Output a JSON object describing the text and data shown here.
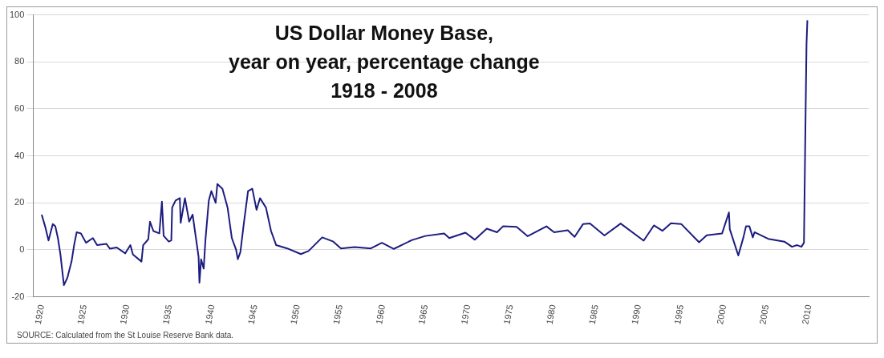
{
  "chart_data": {
    "type": "line",
    "title": "US Dollar Money Base,\nyear on year, percentage change\n1918 - 2008",
    "annotations": [
      "SOURCE: Calculated from the St Louise Reserve Bank data."
    ],
    "x": [
      1920.0,
      1920.4,
      1920.8,
      1921.3,
      1921.6,
      1921.9,
      1922.2,
      1922.6,
      1923.0,
      1923.5,
      1923.8,
      1924.1,
      1924.6,
      1925.2,
      1926.0,
      1926.5,
      1927.6,
      1928.0,
      1928.8,
      1929.8,
      1930.4,
      1930.7,
      1931.7,
      1931.9,
      1932.5,
      1932.7,
      1933.1,
      1933.8,
      1934.1,
      1934.3,
      1934.9,
      1935.2,
      1935.3,
      1935.7,
      1936.2,
      1936.3,
      1936.8,
      1937.3,
      1937.7,
      1938.4,
      1938.5,
      1938.7,
      1939.0,
      1939.2,
      1939.6,
      1939.9,
      1940.4,
      1940.6,
      1941.2,
      1941.8,
      1942.3,
      1942.8,
      1943.0,
      1943.3,
      1943.7,
      1944.2,
      1944.7,
      1945.2,
      1945.6,
      1946.3,
      1946.9,
      1947.5,
      1948.8,
      1950.4,
      1951.3,
      1952.9,
      1954.2,
      1955.1,
      1956.7,
      1958.6,
      1959.9,
      1961.3,
      1963.4,
      1965.0,
      1967.2,
      1967.8,
      1969.7,
      1970.8,
      1972.2,
      1973.4,
      1974.1,
      1975.7,
      1977.0,
      1977.9,
      1979.2,
      1980.1,
      1981.7,
      1982.5,
      1983.5,
      1984.3,
      1986.0,
      1987.9,
      1990.6,
      1991.8,
      1992.8,
      1993.8,
      1995.0,
      1997.1,
      1998.0,
      1999.8,
      2000.6,
      2000.7,
      2001.7,
      2002.3,
      2002.6,
      2003.0,
      2003.4,
      2003.6,
      2005.2,
      2007.1,
      2008.0,
      2008.6,
      2009.1,
      2009.4,
      2009.6,
      2009.7,
      2009.8
    ],
    "series": [
      {
        "color": "#1c1c80",
        "values": [
          15,
          10,
          4,
          11,
          10,
          5,
          -2,
          -15,
          -12,
          -5,
          2,
          7.5,
          7,
          3,
          5,
          2,
          2.5,
          0.5,
          1,
          -1.5,
          2,
          -2,
          -5,
          2,
          4.5,
          12,
          8,
          7,
          20.5,
          6,
          3.5,
          4,
          18,
          21,
          22,
          11.5,
          22,
          12,
          15,
          -3,
          -14,
          -4,
          -8,
          4,
          21,
          25,
          20,
          28,
          26,
          18,
          5,
          0,
          -4,
          -1,
          11,
          25,
          26,
          17,
          22,
          18,
          8,
          2,
          0.6,
          -1.8,
          -0.5,
          5.3,
          3.5,
          0.6,
          1.2,
          0.6,
          3,
          0.4,
          4.1,
          5.9,
          7,
          5,
          7.3,
          4.3,
          9,
          7.5,
          10,
          9.8,
          5.8,
          7.5,
          10,
          7.5,
          8.3,
          5.5,
          11,
          11.2,
          6.1,
          11.2,
          3.9,
          10.4,
          8.1,
          11.3,
          11,
          3.2,
          6.2,
          7,
          15.9,
          8.8,
          -2.4,
          5.3,
          10,
          10,
          5.3,
          7.5,
          4.7,
          3.5,
          1.3,
          2,
          1.3,
          3,
          60.6,
          87.7,
          97.7
        ]
      }
    ],
    "xlim": [
      1919,
      2017
    ],
    "xticks": [
      1920,
      1925,
      1930,
      1935,
      1940,
      1945,
      1950,
      1955,
      1960,
      1965,
      1970,
      1975,
      1980,
      1985,
      1990,
      1995,
      2000,
      2005,
      2010
    ],
    "ylim": [
      -20,
      100
    ],
    "yticks": [
      -20,
      0,
      20,
      40,
      60,
      80,
      100
    ],
    "grid": "y",
    "legend": false,
    "marker": "none",
    "line_style": "solid"
  }
}
